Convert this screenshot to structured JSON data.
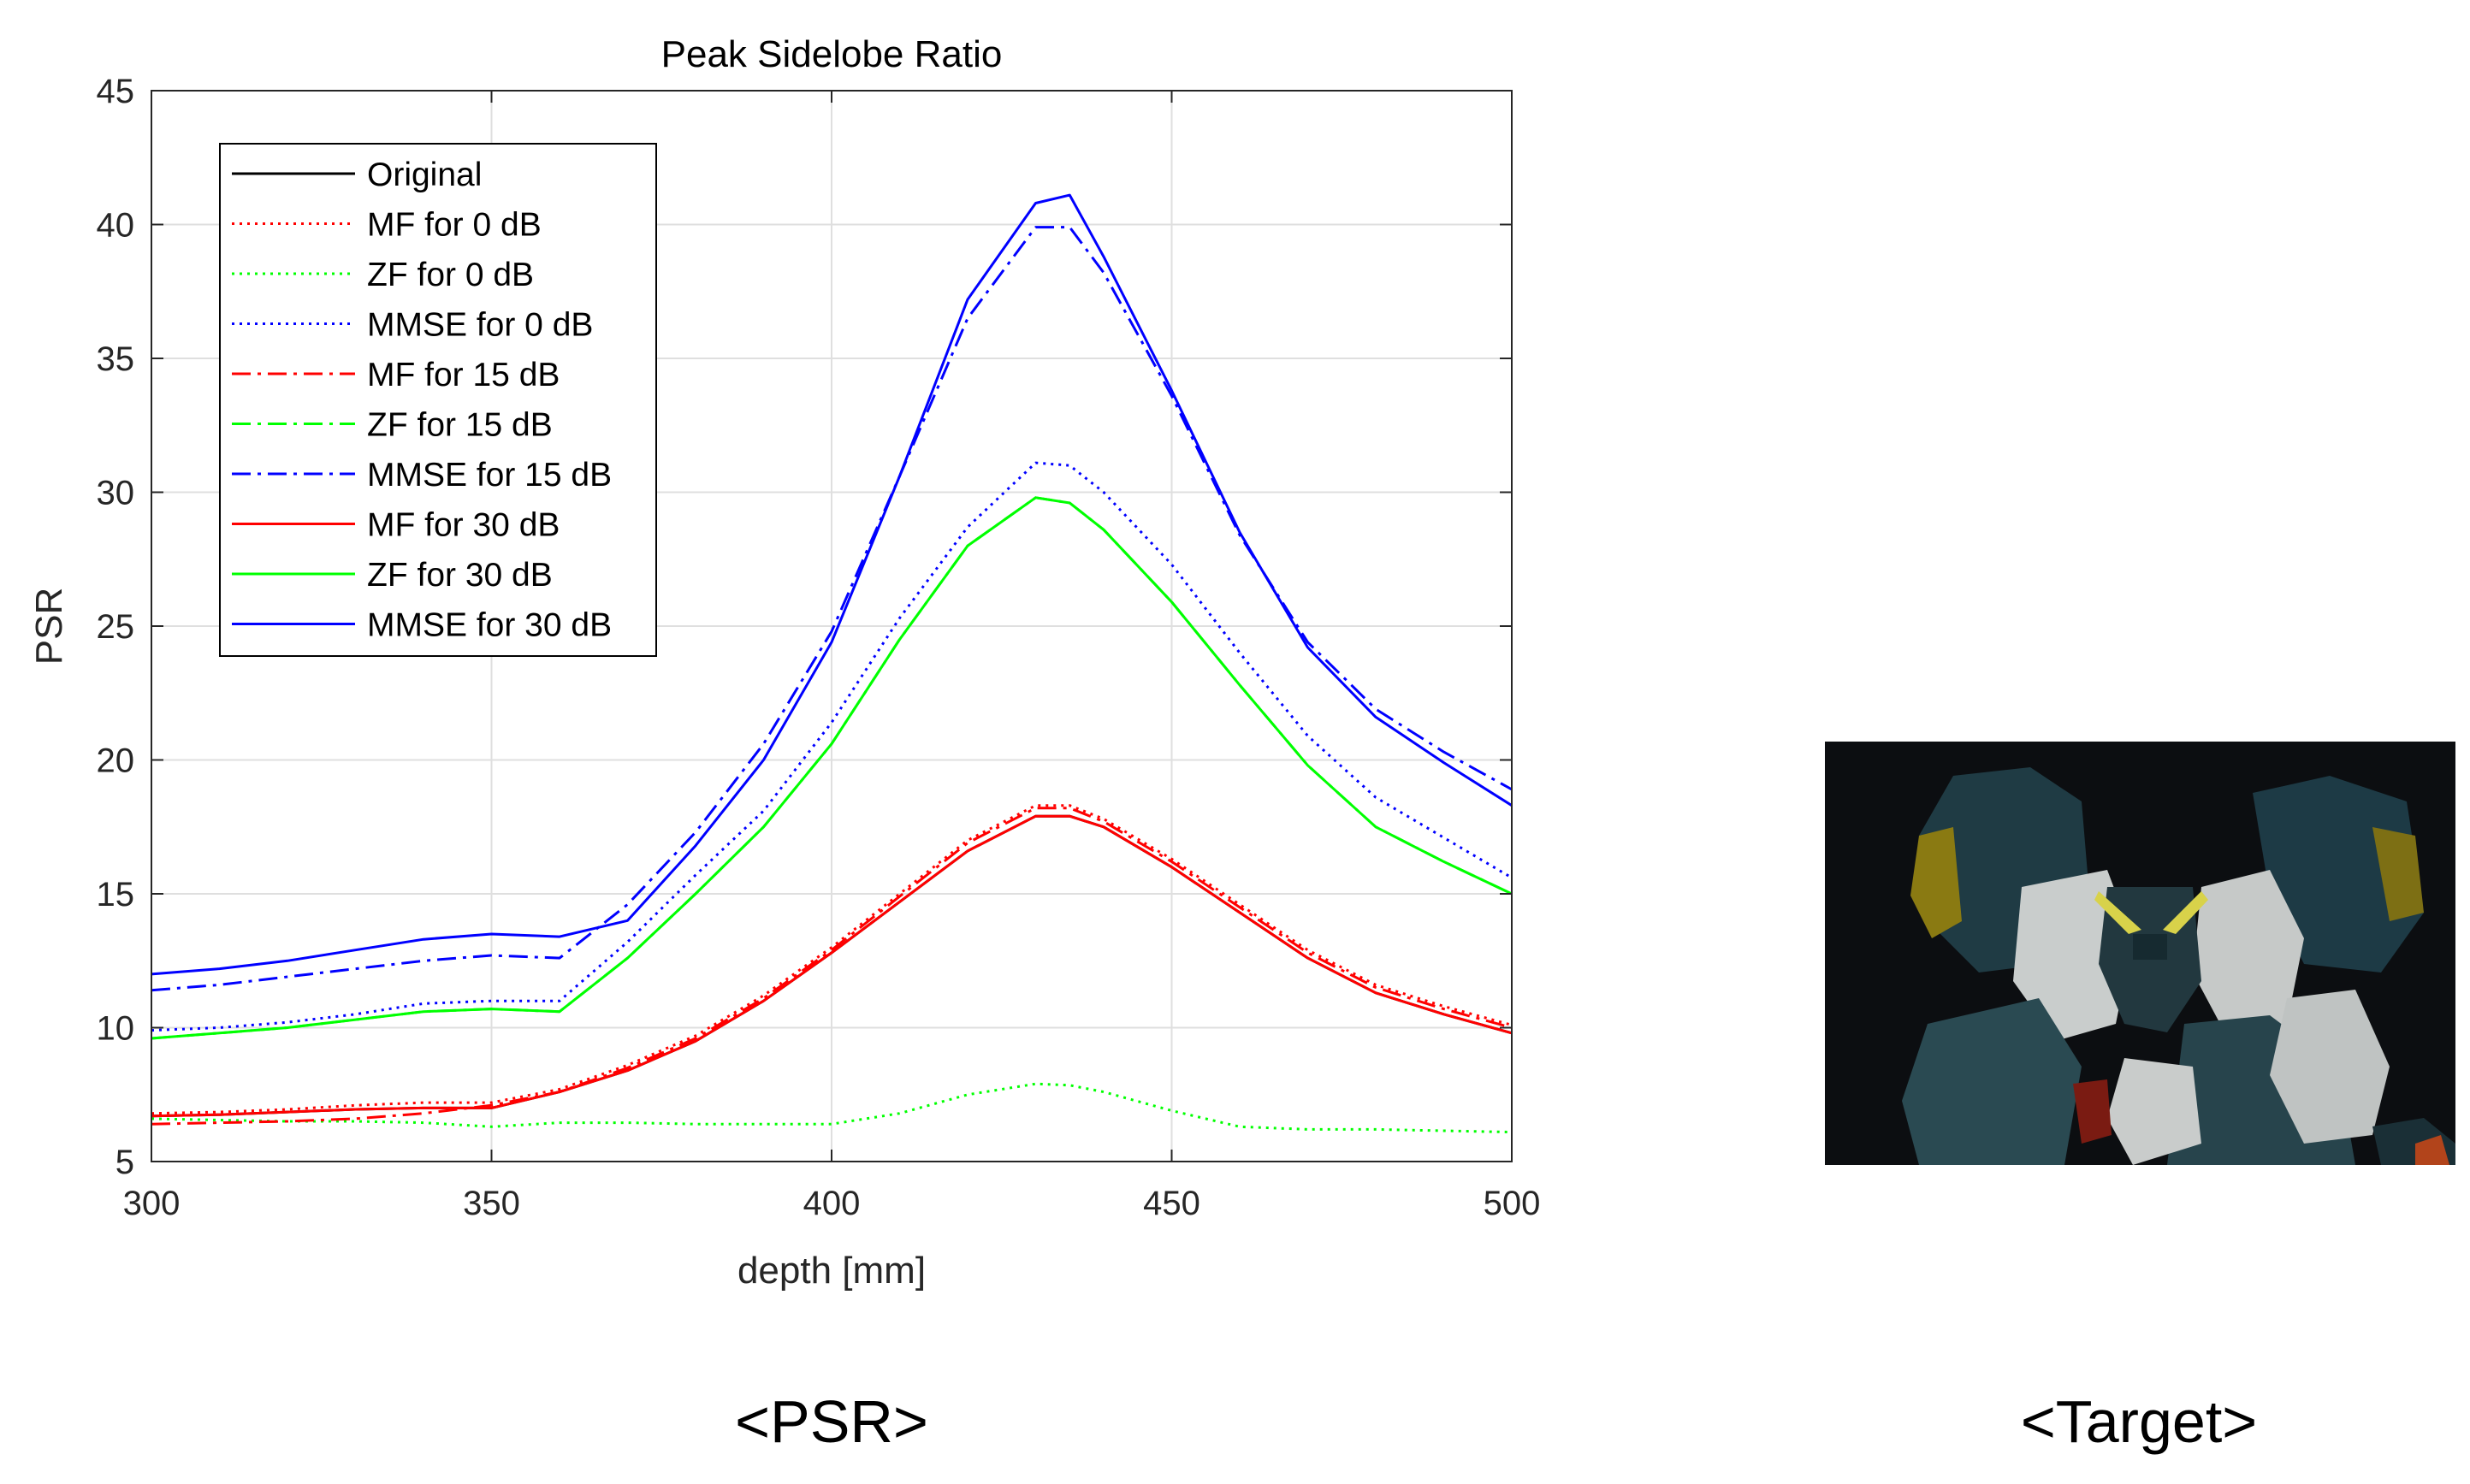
{
  "chart_data": {
    "type": "line",
    "title": "Peak Sidelobe Ratio",
    "xlabel": "depth [mm]",
    "ylabel": "PSR",
    "xlim": [
      300,
      500
    ],
    "ylim": [
      5,
      45
    ],
    "xticks": [
      300,
      350,
      400,
      450,
      500
    ],
    "yticks": [
      5,
      10,
      15,
      20,
      25,
      30,
      35,
      40,
      45
    ],
    "grid": true,
    "legend_position": "top-left",
    "x": [
      300,
      310,
      320,
      330,
      340,
      350,
      360,
      370,
      380,
      390,
      400,
      410,
      420,
      430,
      435,
      440,
      450,
      460,
      470,
      480,
      490,
      500
    ],
    "series": [
      {
        "name": "Original",
        "color": "#000000",
        "style": "solid",
        "values": [
          6.7,
          6.75,
          6.85,
          6.95,
          7.0,
          7.0,
          7.6,
          8.4,
          9.5,
          11.0,
          12.8,
          14.7,
          16.6,
          17.9,
          17.9,
          17.5,
          16.0,
          14.3,
          12.6,
          11.3,
          10.5,
          9.8
        ]
      },
      {
        "name": "MF for 0 dB",
        "color": "#ff0000",
        "style": "dotted",
        "values": [
          6.8,
          6.85,
          6.95,
          7.1,
          7.2,
          7.2,
          7.7,
          8.6,
          9.7,
          11.2,
          13.0,
          15.0,
          17.0,
          18.3,
          18.3,
          17.8,
          16.3,
          14.6,
          12.9,
          11.6,
          10.8,
          10.1
        ]
      },
      {
        "name": "ZF for 0 dB",
        "color": "#00ff00",
        "style": "dotted",
        "values": [
          6.6,
          6.55,
          6.5,
          6.5,
          6.45,
          6.3,
          6.45,
          6.45,
          6.4,
          6.4,
          6.4,
          6.8,
          7.5,
          7.9,
          7.85,
          7.6,
          6.9,
          6.3,
          6.2,
          6.2,
          6.15,
          6.1
        ]
      },
      {
        "name": "MMSE for 0 dB",
        "color": "#0000ff",
        "style": "dotted",
        "values": [
          9.9,
          10.0,
          10.2,
          10.5,
          10.9,
          11.0,
          11.0,
          13.2,
          15.7,
          18.1,
          21.4,
          25.3,
          28.7,
          31.1,
          31.0,
          30.0,
          27.3,
          24.0,
          20.9,
          18.6,
          17.1,
          15.6
        ]
      },
      {
        "name": "MF for 15 dB",
        "color": "#ff0000",
        "style": "dashdot",
        "values": [
          6.4,
          6.45,
          6.5,
          6.6,
          6.8,
          7.1,
          7.6,
          8.5,
          9.6,
          11.1,
          12.9,
          14.9,
          16.9,
          18.2,
          18.2,
          17.7,
          16.2,
          14.5,
          12.8,
          11.5,
          10.7,
          10.0
        ]
      },
      {
        "name": "ZF for 15 dB",
        "color": "#00ff00",
        "style": "dashdot",
        "values": [
          9.6,
          9.8,
          10.0,
          10.3,
          10.6,
          10.7,
          10.6,
          12.6,
          15.0,
          17.5,
          20.6,
          24.5,
          28.0,
          29.8,
          29.6,
          28.6,
          25.9,
          22.8,
          19.8,
          17.5,
          16.2,
          15.0
        ]
      },
      {
        "name": "MMSE for 15 dB",
        "color": "#0000ff",
        "style": "dashdot",
        "values": [
          11.4,
          11.6,
          11.9,
          12.2,
          12.5,
          12.7,
          12.6,
          14.6,
          17.3,
          20.6,
          24.8,
          30.6,
          36.5,
          39.9,
          39.9,
          38.2,
          33.6,
          28.4,
          24.4,
          21.9,
          20.3,
          18.9
        ]
      },
      {
        "name": "MF for 30 dB",
        "color": "#ff0000",
        "style": "solid",
        "values": [
          6.7,
          6.75,
          6.85,
          6.95,
          7.0,
          7.0,
          7.6,
          8.4,
          9.5,
          11.0,
          12.8,
          14.7,
          16.6,
          17.9,
          17.9,
          17.5,
          16.0,
          14.3,
          12.6,
          11.3,
          10.5,
          9.8
        ]
      },
      {
        "name": "ZF for 30 dB",
        "color": "#00ff00",
        "style": "solid",
        "values": [
          9.6,
          9.8,
          10.0,
          10.3,
          10.6,
          10.7,
          10.6,
          12.6,
          15.0,
          17.5,
          20.6,
          24.5,
          28.0,
          29.8,
          29.6,
          28.6,
          25.9,
          22.8,
          19.8,
          17.5,
          16.2,
          15.0
        ]
      },
      {
        "name": "MMSE for 30 dB",
        "color": "#0000ff",
        "style": "solid",
        "values": [
          12.0,
          12.2,
          12.5,
          12.9,
          13.3,
          13.5,
          13.4,
          14.0,
          16.8,
          20.0,
          24.4,
          30.6,
          37.2,
          40.8,
          41.1,
          38.8,
          33.8,
          28.5,
          24.2,
          21.6,
          19.9,
          18.3
        ]
      }
    ]
  },
  "captions": {
    "left": "<PSR>",
    "right": "<Target>"
  }
}
